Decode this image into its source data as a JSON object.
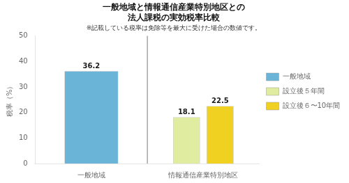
{
  "chart_data": {
    "type": "bar",
    "title": [
      "一般地域と情報通信産業特別地区との",
      "法人課税の実効税率比較"
    ],
    "annotations": [
      "※記載している税率は免除等を最大に受けた場合の数値です。"
    ],
    "y_label": "税率（%）",
    "categories": [
      "一般地域",
      "情報通信産業特別地区"
    ],
    "series": [
      {
        "name": "一般地域",
        "color": "#6ab4d8",
        "values": [
          36.2,
          null
        ]
      },
      {
        "name": "設立後５年間",
        "color": "#e0eda0",
        "values": [
          null,
          18.1
        ]
      },
      {
        "name": "設立後６〜10年間",
        "color": "#f0d020",
        "values": [
          null,
          22.5
        ]
      }
    ],
    "ylim": [
      0,
      50
    ],
    "yticks": [
      0,
      10,
      20,
      30,
      40,
      50
    ],
    "grid": false,
    "legend": "right",
    "data_labels": true
  }
}
